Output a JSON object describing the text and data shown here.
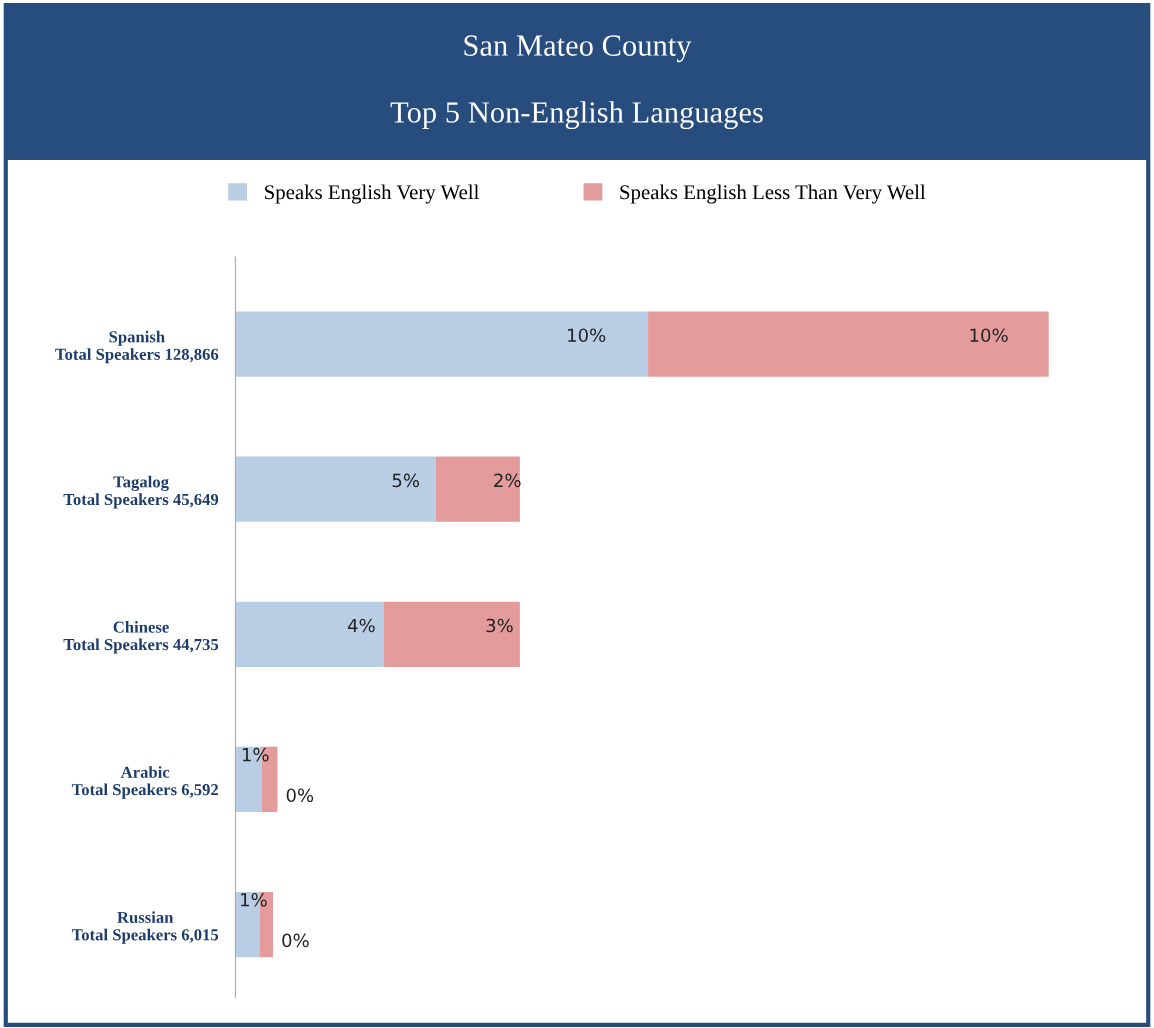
{
  "chart_data": {
    "type": "bar",
    "orientation": "horizontal",
    "stacked": true,
    "title": "San Mateo County",
    "subtitle": "Top 5 Non-English Languages",
    "categories": [
      "Spanish\nTotal Speakers 128,866",
      "Tagalog\nTotal Speakers 45,649",
      "Chinese\nTotal Speakers 44,735",
      "Arabic\nTotal Speakers 6,592",
      "Russian\nTotal Speakers 6,015"
    ],
    "series": [
      {
        "name": "Speaks English Very Well",
        "color": "#b9cde5",
        "values": [
          10.3,
          5.0,
          3.7,
          0.66,
          0.6
        ],
        "value_labels": [
          "10%",
          "5%",
          "4%",
          "1%",
          "1%"
        ]
      },
      {
        "name": "Speaks English Less Than Very Well",
        "color": "#e39c9b",
        "values": [
          10.0,
          2.1,
          3.4,
          0.39,
          0.34
        ],
        "value_labels": [
          "10%",
          "2%",
          "3%",
          "0%",
          "0%"
        ]
      }
    ],
    "legend": "top",
    "grid": false,
    "tick_labels": "y"
  }
}
